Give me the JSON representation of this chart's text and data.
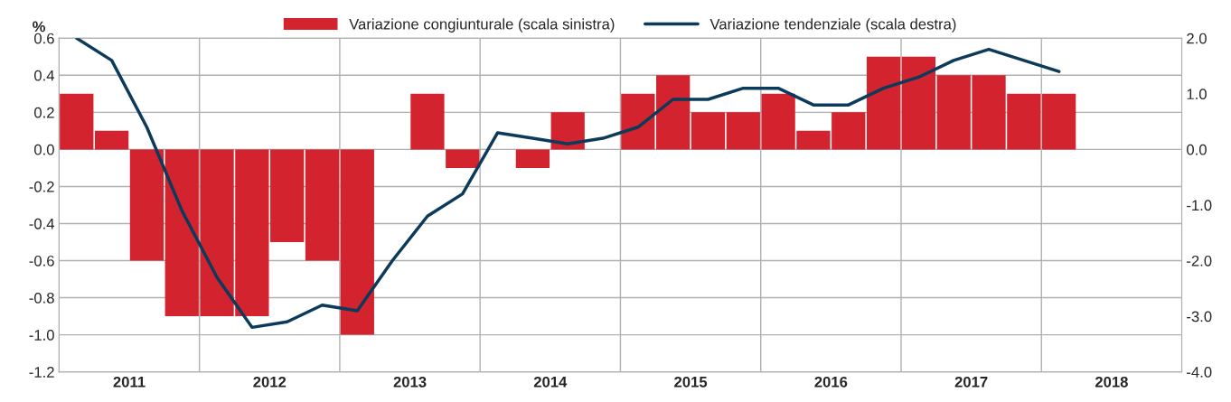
{
  "chart_data": {
    "type": "bar",
    "ylabel": "%",
    "legend": "top",
    "xlim": [
      2011,
      2019
    ],
    "xticks": [
      {
        "value": 2011.5,
        "label": "2011"
      },
      {
        "value": 2012,
        "label": null
      },
      {
        "value": 2012.5,
        "label": "2012"
      },
      {
        "value": 2013,
        "label": null
      },
      {
        "value": 2013.5,
        "label": "2013"
      },
      {
        "value": 2014,
        "label": null
      },
      {
        "value": 2014.5,
        "label": "2014"
      },
      {
        "value": 2015,
        "label": null
      },
      {
        "value": 2015.5,
        "label": "2015"
      },
      {
        "value": 2016,
        "label": null
      },
      {
        "value": 2016.5,
        "label": "2016"
      },
      {
        "value": 2017,
        "label": null
      },
      {
        "value": 2017.5,
        "label": "2017"
      },
      {
        "value": 2018,
        "label": null
      },
      {
        "value": 2018.5,
        "label": "2018"
      }
    ],
    "ylim": [
      -1.2,
      0.6
    ],
    "yticks": [
      {
        "value": -1.2,
        "label": "-1.2"
      },
      {
        "value": -1.0,
        "label": "-1.0"
      },
      {
        "value": -0.8,
        "label": "-0.8"
      },
      {
        "value": -0.6,
        "label": "-0.6"
      },
      {
        "value": -0.4,
        "label": "-0.4"
      },
      {
        "value": -0.2,
        "label": "-0.2"
      },
      {
        "value": 0,
        "label": "0.0"
      },
      {
        "value": 0.2,
        "label": "0.2"
      },
      {
        "value": 0.4,
        "label": "0.4"
      },
      {
        "value": 0.6,
        "label": "0.6"
      }
    ],
    "y2lim": [
      -4.0,
      2.0
    ],
    "y2ticks": [
      {
        "value": -4.0,
        "label": "-4.0"
      },
      {
        "value": -3.0,
        "label": "-3.0"
      },
      {
        "value": -2.0,
        "label": "-2.0"
      },
      {
        "value": -1.0,
        "label": "-1.0"
      },
      {
        "value": 0,
        "label": "0.0"
      },
      {
        "value": 1.0,
        "label": "1.0"
      },
      {
        "value": 2.0,
        "label": "2.0"
      }
    ],
    "grid": true,
    "x": [
      2011.125,
      2011.375,
      2011.625,
      2011.875,
      2012.125,
      2012.375,
      2012.625,
      2012.875,
      2013.125,
      2013.375,
      2013.625,
      2013.875,
      2014.125,
      2014.375,
      2014.625,
      2014.875,
      2015.125,
      2015.375,
      2015.625,
      2015.875,
      2016.125,
      2016.375,
      2016.625,
      2016.875,
      2017.125,
      2017.375,
      2017.625,
      2017.875,
      2018.125
    ],
    "series": [
      {
        "name": "Variazione congiunturale (scala sinistra)",
        "color": "#d2232f",
        "values": [
          0.3,
          0.1,
          -0.6,
          -0.9,
          -0.9,
          -0.9,
          -0.5,
          -0.6,
          -1.0,
          null,
          0.3,
          -0.1,
          null,
          -0.1,
          0.2,
          null,
          0.3,
          0.4,
          0.2,
          0.2,
          0.3,
          0.1,
          0.2,
          0.5,
          0.5,
          0.4,
          0.4,
          0.3,
          0.3
        ]
      },
      {
        "name": "Variazione tendenziale (scala destra)",
        "type": "line",
        "axis": "y2",
        "color": "#0b3a5a",
        "values": [
          2.0,
          1.6,
          0.4,
          -1.1,
          -2.3,
          -3.2,
          -3.1,
          -2.8,
          -2.9,
          -2.0,
          -1.2,
          -0.8,
          0.3,
          0.2,
          0.1,
          0.2,
          0.4,
          0.9,
          0.9,
          1.1,
          1.1,
          0.8,
          0.8,
          1.1,
          1.3,
          1.6,
          1.8,
          1.6,
          1.4
        ]
      }
    ]
  }
}
